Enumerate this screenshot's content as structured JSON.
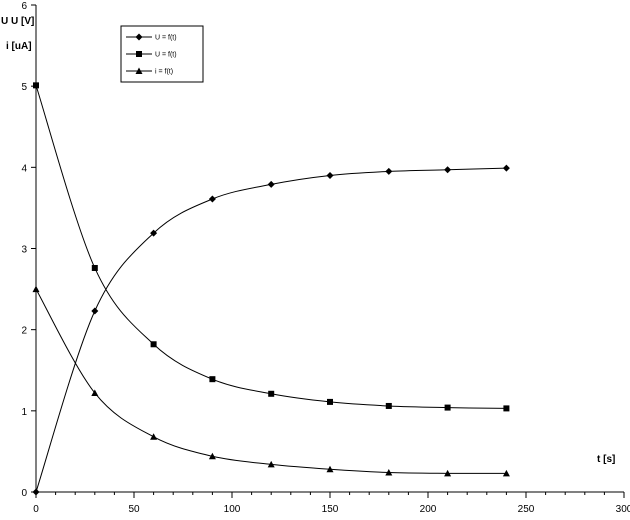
{
  "chart_data": {
    "type": "line",
    "title": "",
    "ylabel_line1": "U  U  [V]",
    "ylabel_line2": "i [uA]",
    "xlabel": "t [s]",
    "xlim": [
      0,
      300
    ],
    "ylim": [
      0,
      6
    ],
    "xticks": [
      0,
      50,
      100,
      150,
      200,
      250,
      300
    ],
    "yticks": [
      0,
      1,
      2,
      3,
      4,
      5,
      6
    ],
    "grid": false,
    "legend_position": "top-left",
    "x": [
      0,
      30,
      60,
      90,
      120,
      150,
      180,
      210,
      240
    ],
    "series": [
      {
        "name": "U = f(t)",
        "marker": "diamond",
        "values": [
          0,
          2.23,
          3.19,
          3.61,
          3.79,
          3.9,
          3.95,
          3.97,
          3.99
        ]
      },
      {
        "name": "U = f(t)",
        "marker": "square",
        "values": [
          5.01,
          2.76,
          1.82,
          1.39,
          1.21,
          1.11,
          1.06,
          1.04,
          1.03
        ]
      },
      {
        "name": "i = f(t)",
        "marker": "triangle",
        "values": [
          2.5,
          1.22,
          0.68,
          0.44,
          0.34,
          0.28,
          0.24,
          0.23,
          0.23
        ]
      }
    ]
  }
}
